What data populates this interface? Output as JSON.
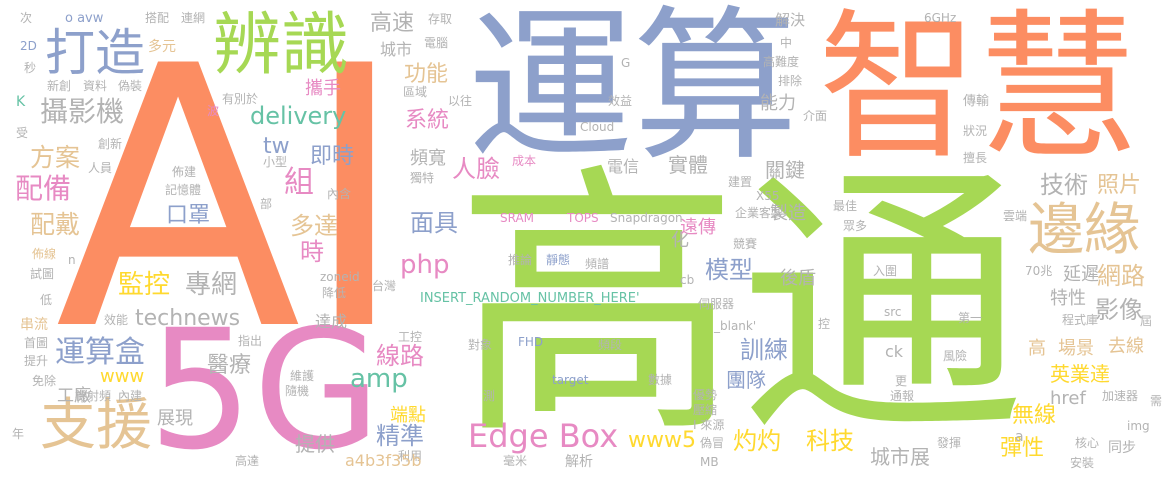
{
  "palette": [
    "#a6d854",
    "#fc8d62",
    "#8da0cb",
    "#e78ac3",
    "#66c2a5",
    "#ffd92f",
    "#e5c494",
    "#b3b3b3"
  ],
  "words": [
    "AI",
    "高通",
    "運算",
    "智慧",
    "5G",
    "辨識",
    "打造",
    "支援",
    "邊緣",
    "Edge Box",
    "運算盒",
    "攝影機",
    "配備",
    "方案",
    "配戴",
    "監控",
    "專網",
    "technews",
    "delivery",
    "口罩",
    "組",
    "即時",
    "tw",
    "多達",
    "時",
    "php",
    "amp",
    "面具",
    "線路",
    "精準",
    "醫療",
    "提供",
    "展現",
    "工廠",
    "www",
    "功能",
    "高速",
    "城市",
    "系統",
    "人臉",
    "頻寬",
    "技術",
    "照片",
    "網路",
    "影像",
    "延遲",
    "特性",
    "高",
    "場景",
    "去線",
    "英業達",
    "href",
    "無線",
    "彈性",
    "同步",
    "城市展",
    "關鍵",
    "實體",
    "電信",
    "模型",
    "訓練",
    "團隊",
    "後盾",
    "製造",
    "遠傳",
    "能力",
    "解決",
    "灼灼",
    "科技",
    "www5",
    "ck",
    "化",
    "攜手",
    "次",
    "o avw",
    "搭配",
    "連網",
    "2D",
    "多元",
    "秒",
    "新創",
    "資料",
    "偽裝",
    "K",
    "受",
    "波",
    "有別於",
    "創新",
    "人員",
    "佈建",
    "記憶體",
    "部",
    "內含",
    "小型",
    "佈線",
    "n",
    "試圖",
    "低",
    "串流",
    "首圖",
    "提升",
    "免除",
    "年",
    "機射頻",
    "內建",
    "效能",
    "達成",
    "zoneid",
    "降低",
    "台灣",
    "工控",
    "指出",
    "維護",
    "隨機",
    "利用",
    "高達",
    "a4b3f35b",
    "端點",
    "對象",
    "FHD",
    "頻段",
    "測",
    "target",
    "數據",
    "優勢",
    "壓縮",
    "I 來源",
    "偽冒",
    "毫米",
    "解析",
    "MB",
    "更",
    "通報",
    "風險",
    "發揮",
    "a",
    "核心",
    "安裝",
    "img",
    "加速器",
    "需",
    "屆",
    "程式庫",
    "第一",
    "控",
    "src",
    "伺服器",
    "_blank'",
    "INSERT_RANDOM_NUMBER_HERE'",
    "推論",
    "靜態",
    "頻譜",
    "SRAM",
    "TOPS",
    "Snapdragon",
    "競賽",
    "cb",
    "入圍",
    "70兆",
    "眾多",
    "最佳",
    "雲端",
    "企業客製",
    "X55",
    "建置",
    "擅長",
    "狀況",
    "傳輸",
    "介面",
    "區域",
    "以往",
    "效益",
    "Cloud",
    "G",
    "電腦",
    "存取",
    "6GHz",
    "中",
    "高難度",
    "排除",
    "獨特",
    "成本"
  ]
}
